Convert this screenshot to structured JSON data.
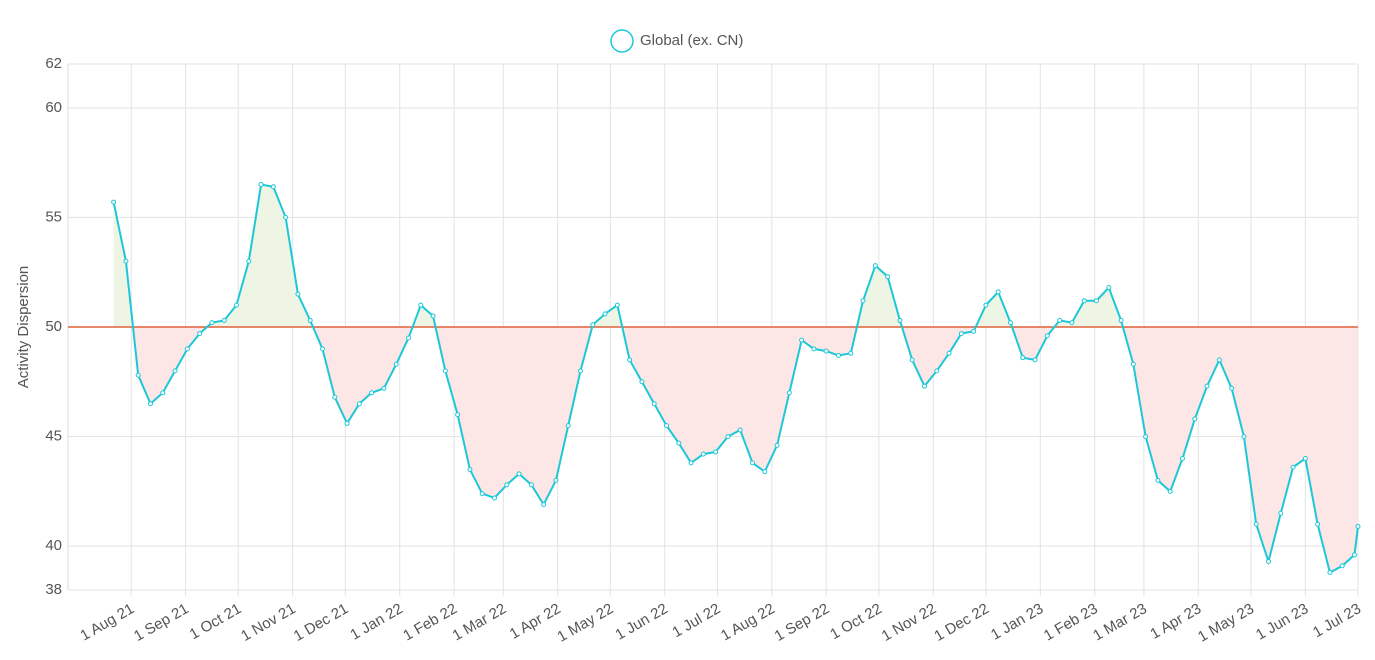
{
  "chart_data": {
    "type": "line",
    "y_label": "Activity Dispersion",
    "legend": "top",
    "grid": true,
    "baseline": 50,
    "baseline_color": "#e0603a",
    "above_color": "#eef5e4",
    "below_color": "#fde6e6",
    "xlim": [
      "2021-06-26",
      "2023-07-01"
    ],
    "xticks": [
      {
        "value": "2021-08-01",
        "label": "1 Aug 21"
      },
      {
        "value": "2021-09-01",
        "label": "1 Sep 21"
      },
      {
        "value": "2021-10-01",
        "label": "1 Oct 21"
      },
      {
        "value": "2021-11-01",
        "label": "1 Nov 21"
      },
      {
        "value": "2021-12-01",
        "label": "1 Dec 21"
      },
      {
        "value": "2022-01-01",
        "label": "1 Jan 22"
      },
      {
        "value": "2022-02-01",
        "label": "1 Feb 22"
      },
      {
        "value": "2022-03-01",
        "label": "1 Mar 22"
      },
      {
        "value": "2022-04-01",
        "label": "1 Apr 22"
      },
      {
        "value": "2022-05-01",
        "label": "1 May 22"
      },
      {
        "value": "2022-06-01",
        "label": "1 Jun 22"
      },
      {
        "value": "2022-07-01",
        "label": "1 Jul 22"
      },
      {
        "value": "2022-08-01",
        "label": "1 Aug 22"
      },
      {
        "value": "2022-09-01",
        "label": "1 Sep 22"
      },
      {
        "value": "2022-10-01",
        "label": "1 Oct 22"
      },
      {
        "value": "2022-11-01",
        "label": "1 Nov 22"
      },
      {
        "value": "2022-12-01",
        "label": "1 Dec 22"
      },
      {
        "value": "2023-01-01",
        "label": "1 Jan 23"
      },
      {
        "value": "2023-02-01",
        "label": "1 Feb 23"
      },
      {
        "value": "2023-03-01",
        "label": "1 Mar 23"
      },
      {
        "value": "2023-04-01",
        "label": "1 Apr 23"
      },
      {
        "value": "2023-05-01",
        "label": "1 May 23"
      },
      {
        "value": "2023-06-01",
        "label": "1 Jun 23"
      },
      {
        "value": "2023-07-01",
        "label": "1 Jul 23"
      }
    ],
    "ylim": [
      38,
      62
    ],
    "yticks": [
      38,
      40,
      45,
      50,
      55,
      60,
      62
    ],
    "x": [
      "2021-07-22",
      "2021-07-29",
      "2021-08-05",
      "2021-08-12",
      "2021-08-19",
      "2021-08-26",
      "2021-09-02",
      "2021-09-09",
      "2021-09-16",
      "2021-09-23",
      "2021-09-30",
      "2021-10-07",
      "2021-10-14",
      "2021-10-21",
      "2021-10-28",
      "2021-11-04",
      "2021-11-11",
      "2021-11-18",
      "2021-11-25",
      "2021-12-02",
      "2021-12-09",
      "2021-12-16",
      "2021-12-23",
      "2021-12-30",
      "2022-01-06",
      "2022-01-13",
      "2022-01-20",
      "2022-01-27",
      "2022-02-03",
      "2022-02-10",
      "2022-02-17",
      "2022-02-24",
      "2022-03-03",
      "2022-03-10",
      "2022-03-17",
      "2022-03-24",
      "2022-03-31",
      "2022-04-07",
      "2022-04-14",
      "2022-04-21",
      "2022-04-28",
      "2022-05-05",
      "2022-05-12",
      "2022-05-19",
      "2022-05-26",
      "2022-06-02",
      "2022-06-09",
      "2022-06-16",
      "2022-06-23",
      "2022-06-30",
      "2022-07-07",
      "2022-07-14",
      "2022-07-21",
      "2022-07-28",
      "2022-08-04",
      "2022-08-11",
      "2022-08-18",
      "2022-08-25",
      "2022-09-01",
      "2022-09-08",
      "2022-09-15",
      "2022-09-22",
      "2022-09-29",
      "2022-10-06",
      "2022-10-13",
      "2022-10-20",
      "2022-10-27",
      "2022-11-03",
      "2022-11-10",
      "2022-11-17",
      "2022-11-24",
      "2022-12-01",
      "2022-12-08",
      "2022-12-15",
      "2022-12-22",
      "2022-12-29",
      "2023-01-05",
      "2023-01-12",
      "2023-01-19",
      "2023-01-26",
      "2023-02-02",
      "2023-02-09",
      "2023-02-16",
      "2023-02-23",
      "2023-03-02",
      "2023-03-09",
      "2023-03-16",
      "2023-03-23",
      "2023-03-30",
      "2023-04-06",
      "2023-04-13",
      "2023-04-20",
      "2023-04-27",
      "2023-05-04",
      "2023-05-11",
      "2023-05-18",
      "2023-05-25",
      "2023-06-01",
      "2023-06-08",
      "2023-06-15",
      "2023-06-22",
      "2023-06-29",
      "2023-07-01"
    ],
    "series": [
      {
        "name": "Global (ex. CN)",
        "color": "#1cc8d8",
        "values": [
          55.7,
          53.0,
          47.8,
          46.5,
          47.0,
          48.0,
          49.0,
          49.7,
          50.2,
          50.3,
          51.0,
          53.0,
          56.5,
          56.4,
          55.0,
          51.5,
          50.3,
          49.0,
          46.8,
          45.6,
          46.5,
          47.0,
          47.2,
          48.3,
          49.5,
          51.0,
          50.5,
          48.0,
          46.0,
          43.5,
          42.4,
          42.2,
          42.8,
          43.3,
          42.8,
          41.9,
          43.0,
          45.5,
          48.0,
          50.1,
          50.6,
          51.0,
          48.5,
          47.5,
          46.5,
          45.5,
          44.7,
          43.8,
          44.2,
          44.3,
          45.0,
          45.3,
          43.8,
          43.4,
          44.6,
          47.0,
          49.4,
          49.0,
          48.9,
          48.7,
          48.8,
          51.2,
          52.8,
          52.3,
          50.3,
          48.5,
          47.3,
          48.0,
          48.8,
          49.7,
          49.8,
          51.0,
          51.6,
          50.2,
          48.6,
          48.5,
          49.6,
          50.3,
          50.2,
          51.2,
          51.2,
          51.8,
          50.3,
          48.3,
          45.0,
          43.0,
          42.5,
          44.0,
          45.8,
          47.3,
          48.5,
          47.2,
          45.0,
          41.0,
          39.3,
          41.5,
          43.6,
          44.0,
          41.0,
          38.8,
          39.1,
          39.6,
          40.9
        ]
      }
    ]
  }
}
